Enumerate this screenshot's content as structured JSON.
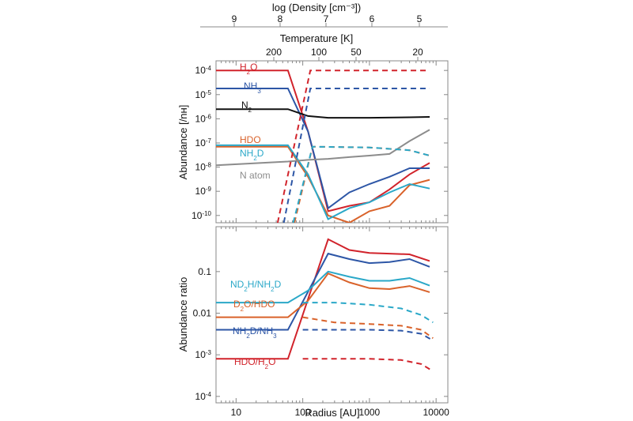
{
  "colors": {
    "h2o": "#d1232b",
    "nh3": "#2d56a6",
    "n2": "#111111",
    "hdo": "#d9622a",
    "nh2d": "#2aa8c8",
    "natom": "#8c8c8c",
    "ratio_nd2h": "#2aa8c8",
    "ratio_d2o": "#d9622a",
    "ratio_nh2d": "#2d56a6",
    "ratio_hdo": "#d1232b"
  },
  "top_axes": {
    "density_label": "log (Density [cm⁻³])",
    "density_ticks": [
      {
        "value": 9,
        "label": "9"
      },
      {
        "value": 8,
        "label": "8"
      },
      {
        "value": 7,
        "label": "7"
      },
      {
        "value": 6,
        "label": "6"
      },
      {
        "value": 5,
        "label": "5"
      }
    ],
    "temperature_label": "Temperature [K]",
    "temperature_ticks": [
      {
        "value": 200,
        "label": "200"
      },
      {
        "value": 100,
        "label": "100"
      },
      {
        "value": 50,
        "label": "50"
      },
      {
        "value": 20,
        "label": "20"
      }
    ]
  },
  "chart_data": [
    {
      "type": "line",
      "panel": "top",
      "xlabel": "",
      "ylabel": "Abundance [/nʜ]",
      "xscale": "log",
      "yscale": "log",
      "xlim": [
        5,
        15000
      ],
      "ylim": [
        5e-11,
        0.00025
      ],
      "yticks": [
        {
          "value": 0.0001,
          "base": "10",
          "exp": "-4"
        },
        {
          "value": 1e-05,
          "base": "10",
          "exp": "-5"
        },
        {
          "value": 1e-06,
          "base": "10",
          "exp": "-6"
        },
        {
          "value": 1e-07,
          "base": "10",
          "exp": "-7"
        },
        {
          "value": 1e-08,
          "base": "10",
          "exp": "-8"
        },
        {
          "value": 1e-09,
          "base": "10",
          "exp": "-9"
        },
        {
          "value": 1e-10,
          "base": "10",
          "exp": "-10"
        }
      ],
      "series": [
        {
          "key": "h2o",
          "name": "H₂O",
          "label_parts": [
            [
              "H",
              ""
            ],
            [
              "2",
              "sub"
            ],
            [
              "O",
              ""
            ]
          ],
          "style": "solid",
          "points": [
            [
              5,
              0.0001
            ],
            [
              60,
              0.0001
            ],
            [
              120,
              3e-07
            ],
            [
              240,
              1.5e-10
            ],
            [
              500,
              2.5e-10
            ],
            [
              1000,
              3.5e-10
            ],
            [
              2000,
              1.2e-09
            ],
            [
              4000,
              5e-09
            ],
            [
              8000,
              1.5e-08
            ]
          ]
        },
        {
          "key": "nh3",
          "name": "NH₃",
          "label_parts": [
            [
              "NH",
              ""
            ],
            [
              "3",
              "sub"
            ]
          ],
          "style": "solid",
          "points": [
            [
              5,
              1.8e-05
            ],
            [
              60,
              1.8e-05
            ],
            [
              120,
              3e-07
            ],
            [
              240,
              2e-10
            ],
            [
              500,
              9e-10
            ],
            [
              1000,
              2e-09
            ],
            [
              2000,
              4e-09
            ],
            [
              4000,
              9e-09
            ],
            [
              8000,
              9e-09
            ]
          ]
        },
        {
          "key": "n2",
          "name": "N₂",
          "label_parts": [
            [
              "N",
              ""
            ],
            [
              "2",
              "sub"
            ]
          ],
          "style": "solid",
          "points": [
            [
              5,
              2.5e-06
            ],
            [
              60,
              2.5e-06
            ],
            [
              120,
              1.3e-06
            ],
            [
              240,
              1.1e-06
            ],
            [
              1000,
              1.1e-06
            ],
            [
              4000,
              1.15e-06
            ],
            [
              8000,
              1.2e-06
            ]
          ]
        },
        {
          "key": "hdo",
          "name": "HDO",
          "label_parts": [
            [
              "HDO",
              ""
            ]
          ],
          "style": "solid",
          "points": [
            [
              5,
              7e-08
            ],
            [
              60,
              7e-08
            ],
            [
              120,
              4e-09
            ],
            [
              240,
              1e-10
            ],
            [
              500,
              5e-11
            ],
            [
              1000,
              1.5e-10
            ],
            [
              2000,
              2.5e-10
            ],
            [
              4000,
              1.8e-09
            ],
            [
              8000,
              3e-09
            ]
          ]
        },
        {
          "key": "nh2d",
          "name": "NH₂D",
          "label_parts": [
            [
              "NH",
              ""
            ],
            [
              "2",
              "sub"
            ],
            [
              "D",
              ""
            ]
          ],
          "style": "solid",
          "points": [
            [
              5,
              8e-08
            ],
            [
              60,
              8e-08
            ],
            [
              120,
              5e-09
            ],
            [
              240,
              7e-11
            ],
            [
              500,
              2e-10
            ],
            [
              1000,
              3.5e-10
            ],
            [
              2000,
              9e-10
            ],
            [
              4000,
              2e-09
            ],
            [
              8000,
              1.3e-09
            ]
          ]
        },
        {
          "key": "natom",
          "name": "N atom",
          "label_parts": [
            [
              "N atom",
              ""
            ]
          ],
          "style": "solid",
          "points": [
            [
              5,
              1.2e-08
            ],
            [
              60,
              1.7e-08
            ],
            [
              120,
              2e-08
            ],
            [
              240,
              2.2e-08
            ],
            [
              500,
              2.6e-08
            ],
            [
              1000,
              3e-08
            ],
            [
              2000,
              3.5e-08
            ],
            [
              4000,
              1.2e-07
            ],
            [
              8000,
              3.5e-07
            ]
          ]
        },
        {
          "key": "h2o",
          "name": "H₂O ice",
          "style": "dashed",
          "points": [
            [
              42,
              5e-11
            ],
            [
              130,
              0.0001
            ],
            [
              8000,
              0.0001
            ]
          ]
        },
        {
          "key": "nh3",
          "name": "NH₃ ice",
          "style": "dashed",
          "points": [
            [
              52,
              5e-11
            ],
            [
              130,
              1.8e-05
            ],
            [
              8000,
              1.8e-05
            ]
          ]
        },
        {
          "key": "hdo",
          "name": "HDO ice",
          "style": "dashed",
          "points": [
            [
              75,
              5e-11
            ],
            [
              140,
              7e-08
            ],
            [
              1000,
              6.5e-08
            ],
            [
              4000,
              5e-08
            ],
            [
              8000,
              3e-08
            ]
          ]
        },
        {
          "key": "nh2d",
          "name": "NH₂D ice",
          "style": "dashed",
          "points": [
            [
              72,
              5e-11
            ],
            [
              140,
              7e-08
            ],
            [
              1000,
              6.5e-08
            ],
            [
              4000,
              5e-08
            ],
            [
              8000,
              3e-08
            ]
          ]
        }
      ]
    },
    {
      "type": "line",
      "panel": "bottom",
      "xlabel": "Radius [AU]",
      "ylabel": "Abundance ratio",
      "xscale": "log",
      "yscale": "log",
      "xlim": [
        5,
        15000
      ],
      "ylim": [
        7e-05,
        1.2
      ],
      "xticks": [
        {
          "value": 10,
          "label": "10"
        },
        {
          "value": 100,
          "label": "100"
        },
        {
          "value": 1000,
          "label": "1000"
        },
        {
          "value": 10000,
          "label": "10000"
        }
      ],
      "yticks": [
        {
          "value": 0.1,
          "label": "0.1"
        },
        {
          "value": 0.01,
          "label": "0.01"
        },
        {
          "value": 0.001,
          "label": "10",
          "exp": "-3"
        },
        {
          "value": 0.0001,
          "label": "10",
          "exp": "-4"
        }
      ],
      "series": [
        {
          "key": "ratio_hdo",
          "name": "HDO/H₂O",
          "label_parts": [
            [
              "HDO/H",
              ""
            ],
            [
              "2",
              "sub"
            ],
            [
              "O",
              ""
            ]
          ],
          "style": "solid",
          "points": [
            [
              5,
              0.0008
            ],
            [
              60,
              0.0008
            ],
            [
              240,
              0.6
            ],
            [
              500,
              0.33
            ],
            [
              1000,
              0.28
            ],
            [
              2000,
              0.27
            ],
            [
              4000,
              0.26
            ],
            [
              8000,
              0.18
            ]
          ]
        },
        {
          "key": "ratio_nh2d",
          "name": "NH₂D/NH₃",
          "label_parts": [
            [
              "NH",
              ""
            ],
            [
              "2",
              "sub"
            ],
            [
              "D/NH",
              ""
            ],
            [
              "3",
              "sub"
            ]
          ],
          "style": "solid",
          "points": [
            [
              5,
              0.004
            ],
            [
              60,
              0.004
            ],
            [
              240,
              0.27
            ],
            [
              500,
              0.2
            ],
            [
              1000,
              0.16
            ],
            [
              2000,
              0.17
            ],
            [
              4000,
              0.2
            ],
            [
              8000,
              0.13
            ]
          ]
        },
        {
          "key": "ratio_nd2h",
          "name": "ND₂H/NH₂D",
          "label_parts": [
            [
              "ND",
              ""
            ],
            [
              "2",
              "sub"
            ],
            [
              "H/NH",
              ""
            ],
            [
              "2",
              "sub"
            ],
            [
              "D",
              ""
            ]
          ],
          "style": "solid",
          "points": [
            [
              5,
              0.018
            ],
            [
              60,
              0.018
            ],
            [
              120,
              0.035
            ],
            [
              240,
              0.1
            ],
            [
              500,
              0.075
            ],
            [
              1000,
              0.06
            ],
            [
              2000,
              0.06
            ],
            [
              4000,
              0.07
            ],
            [
              8000,
              0.046
            ]
          ]
        },
        {
          "key": "ratio_d2o",
          "name": "D₂O/HDO",
          "label_parts": [
            [
              "D",
              ""
            ],
            [
              "2",
              "sub"
            ],
            [
              "O/HDO",
              ""
            ]
          ],
          "style": "solid",
          "points": [
            [
              5,
              0.008
            ],
            [
              60,
              0.008
            ],
            [
              120,
              0.02
            ],
            [
              240,
              0.09
            ],
            [
              500,
              0.055
            ],
            [
              1000,
              0.04
            ],
            [
              2000,
              0.038
            ],
            [
              4000,
              0.045
            ],
            [
              8000,
              0.032
            ]
          ]
        },
        {
          "key": "ratio_nd2h",
          "name": "ND₂H/NH₂D ice",
          "style": "dashed",
          "points": [
            [
              100,
              0.018
            ],
            [
              300,
              0.018
            ],
            [
              1000,
              0.016
            ],
            [
              3000,
              0.013
            ],
            [
              6000,
              0.009
            ],
            [
              9000,
              0.006
            ]
          ]
        },
        {
          "key": "ratio_d2o",
          "name": "D₂O/HDO ice",
          "style": "dashed",
          "points": [
            [
              100,
              0.008
            ],
            [
              300,
              0.006
            ],
            [
              1000,
              0.0055
            ],
            [
              3000,
              0.005
            ],
            [
              6000,
              0.004
            ],
            [
              9000,
              0.0025
            ]
          ]
        },
        {
          "key": "ratio_nh2d",
          "name": "NH₂D/NH₃ ice",
          "style": "dashed",
          "points": [
            [
              100,
              0.004
            ],
            [
              300,
              0.004
            ],
            [
              1000,
              0.004
            ],
            [
              3000,
              0.0038
            ],
            [
              6000,
              0.0032
            ],
            [
              9000,
              0.0022
            ]
          ]
        },
        {
          "key": "ratio_hdo",
          "name": "HDO/H₂O ice",
          "style": "dashed",
          "points": [
            [
              100,
              0.0008
            ],
            [
              300,
              0.0008
            ],
            [
              1000,
              0.0008
            ],
            [
              3000,
              0.00075
            ],
            [
              6000,
              0.0006
            ],
            [
              9000,
              0.0004
            ]
          ]
        }
      ]
    }
  ]
}
